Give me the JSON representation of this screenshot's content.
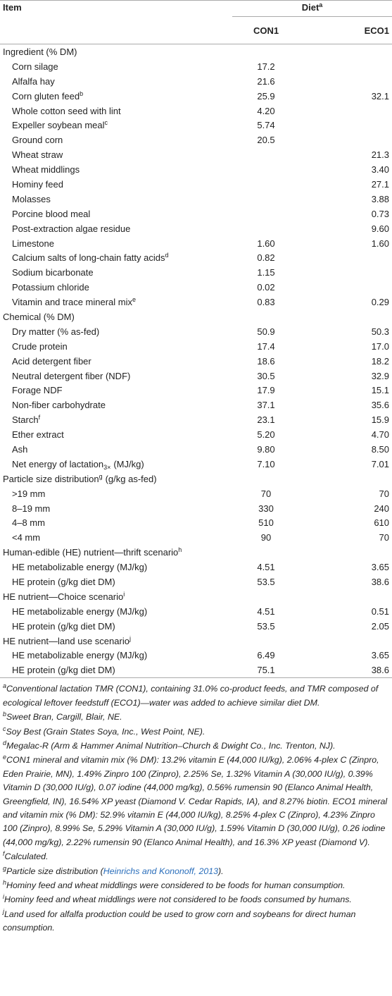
{
  "table": {
    "header": {
      "item": "Item",
      "diet": "Diet",
      "diet_sup": "a",
      "columns": [
        "CON1",
        "ECO1"
      ]
    },
    "sections": [
      {
        "label": "Ingredient (% DM)",
        "rows": [
          {
            "item": "Corn silage",
            "con1": "17.2"
          },
          {
            "item": "Alfalfa hay",
            "con1": "21.6"
          },
          {
            "item": "Corn gluten feed",
            "sup": "b",
            "con1": "25.9",
            "eco1": "32.1"
          },
          {
            "item": "Whole cotton seed with lint",
            "con1": "4.20"
          },
          {
            "item": "Expeller soybean meal",
            "sup": "c",
            "con1": "5.74"
          },
          {
            "item": "Ground corn",
            "con1": "20.5"
          },
          {
            "item": "Wheat straw",
            "eco1": "21.3"
          },
          {
            "item": "Wheat middlings",
            "eco1": "3.40"
          },
          {
            "item": "Hominy feed",
            "eco1": "27.1"
          },
          {
            "item": "Molasses",
            "eco1": "3.88"
          },
          {
            "item": "Porcine blood meal",
            "eco1": "0.73"
          },
          {
            "item": "Post-extraction algae residue",
            "eco1": "9.60"
          },
          {
            "item": "Limestone",
            "con1": "1.60",
            "eco1": "1.60"
          },
          {
            "item": "Calcium salts of long-chain fatty acids",
            "sup": "d",
            "con1": "0.82"
          },
          {
            "item": "Sodium bicarbonate",
            "con1": "1.15"
          },
          {
            "item": "Potassium chloride",
            "con1": "0.02"
          },
          {
            "item": "Vitamin and trace mineral mix",
            "sup": "e",
            "con1": "0.83",
            "eco1": "0.29"
          }
        ]
      },
      {
        "label": "Chemical (% DM)",
        "rows": [
          {
            "item": "Dry matter (% as-fed)",
            "con1": "50.9",
            "eco1": "50.3"
          },
          {
            "item": "Crude protein",
            "con1": "17.4",
            "eco1": "17.0"
          },
          {
            "item": "Acid detergent fiber",
            "con1": "18.6",
            "eco1": "18.2"
          },
          {
            "item": "Neutral detergent fiber (NDF)",
            "con1": "30.5",
            "eco1": "32.9"
          },
          {
            "item": "Forage NDF",
            "con1": "17.9",
            "eco1": "15.1"
          },
          {
            "item": "Non-fiber carbohydrate",
            "con1": "37.1",
            "eco1": "35.6"
          },
          {
            "item": "Starch",
            "sup": "f",
            "con1": "23.1",
            "eco1": "15.9"
          },
          {
            "item": "Ether extract",
            "con1": "5.20",
            "eco1": "4.70"
          },
          {
            "item": "Ash",
            "con1": "9.80",
            "eco1": "8.50"
          },
          {
            "item": "Net energy of lactation",
            "sub": "3×",
            "suffix": "(MJ/kg)",
            "con1": "7.10",
            "eco1": "7.01"
          }
        ]
      },
      {
        "label": "Particle size distribution",
        "sup": "g",
        "suffix": "(g/kg as-fed)",
        "rows": [
          {
            "item": ">19 mm",
            "con1": "70",
            "eco1": "70"
          },
          {
            "item": "8–19 mm",
            "con1": "330",
            "eco1": "240"
          },
          {
            "item": "4–8 mm",
            "con1": "510",
            "eco1": "610"
          },
          {
            "item": "<4 mm",
            "con1": "90",
            "eco1": "70"
          }
        ]
      },
      {
        "label": "Human-edible (HE) nutrient—thrift scenario",
        "sup": "h",
        "rows": [
          {
            "item": "HE metabolizable energy (MJ/kg)",
            "con1": "4.51",
            "eco1": "3.65"
          },
          {
            "item": "HE protein (g/kg diet DM)",
            "con1": "53.5",
            "eco1": "38.6"
          }
        ]
      },
      {
        "label": "HE nutrient—Choice scenario",
        "sup": "i",
        "rows": [
          {
            "item": "HE metabolizable energy (MJ/kg)",
            "con1": "4.51",
            "eco1": "0.51"
          },
          {
            "item": "HE protein (g/kg diet DM)",
            "con1": "53.5",
            "eco1": "2.05"
          }
        ]
      },
      {
        "label": "HE nutrient—land use scenario",
        "sup": "j",
        "rows": [
          {
            "item": "HE metabolizable energy (MJ/kg)",
            "con1": "6.49",
            "eco1": "3.65"
          },
          {
            "item": "HE protein (g/kg diet DM)",
            "con1": "75.1",
            "eco1": "38.6"
          }
        ]
      }
    ]
  },
  "footnotes": [
    {
      "mark": "a",
      "text": "Conventional lactation TMR (CON1), containing 31.0% co-product feeds, and TMR composed of ecological leftover feedstuff (ECO1)—water was added to achieve similar diet DM."
    },
    {
      "mark": "b",
      "text": "Sweet Bran, Cargill, Blair, NE."
    },
    {
      "mark": "c",
      "text": "Soy Best (Grain States Soya, Inc., West Point, NE)."
    },
    {
      "mark": "d",
      "text": "Megalac-R (Arm & Hammer Animal Nutrition–Church & Dwight Co., Inc. Trenton, NJ)."
    },
    {
      "mark": "e",
      "text": "CON1 mineral and vitamin mix (% DM): 13.2% vitamin E (44,000 IU/kg), 2.06% 4-plex C (Zinpro, Eden Prairie, MN), 1.49% Zinpro 100 (Zinpro), 2.25% Se, 1.32% Vitamin A (30,000 IU/g), 0.39% Vitamin D (30,000 IU/g), 0.07 iodine (44,000 mg/kg), 0.56% rumensin 90 (Elanco Animal Health, Greengfield, IN), 16.54% XP yeast (Diamond V. Cedar Rapids, IA), and 8.27% biotin. ECO1 mineral and vitamin mix (% DM): 52.9% vitamin E (44,000 IU/kg), 8.25% 4-plex C (Zinpro), 4.23% Zinpro 100 (Zinpro), 8.99% Se, 5.29% Vitamin A (30,000 IU/g), 1.59% Vitamin D (30,000 IU/g), 0.26 iodine (44,000 mg/kg), 2.22% rumensin 90 (Elanco Animal Health), and 16.3% XP yeast (Diamond V)."
    },
    {
      "mark": "f",
      "text": "Calculated."
    },
    {
      "mark": "g",
      "text": "Particle size distribution (",
      "link": "Heinrichs and Kononoff, 2013",
      "after": ")."
    },
    {
      "mark": "h",
      "text": "Hominy feed and wheat middlings were considered to be foods for human consumption."
    },
    {
      "mark": "i",
      "text": "Hominy feed and wheat middlings were not considered to be foods consumed by humans."
    },
    {
      "mark": "j",
      "text": "Land used for alfalfa production could be used to grow corn and soybeans for direct human consumption."
    }
  ]
}
